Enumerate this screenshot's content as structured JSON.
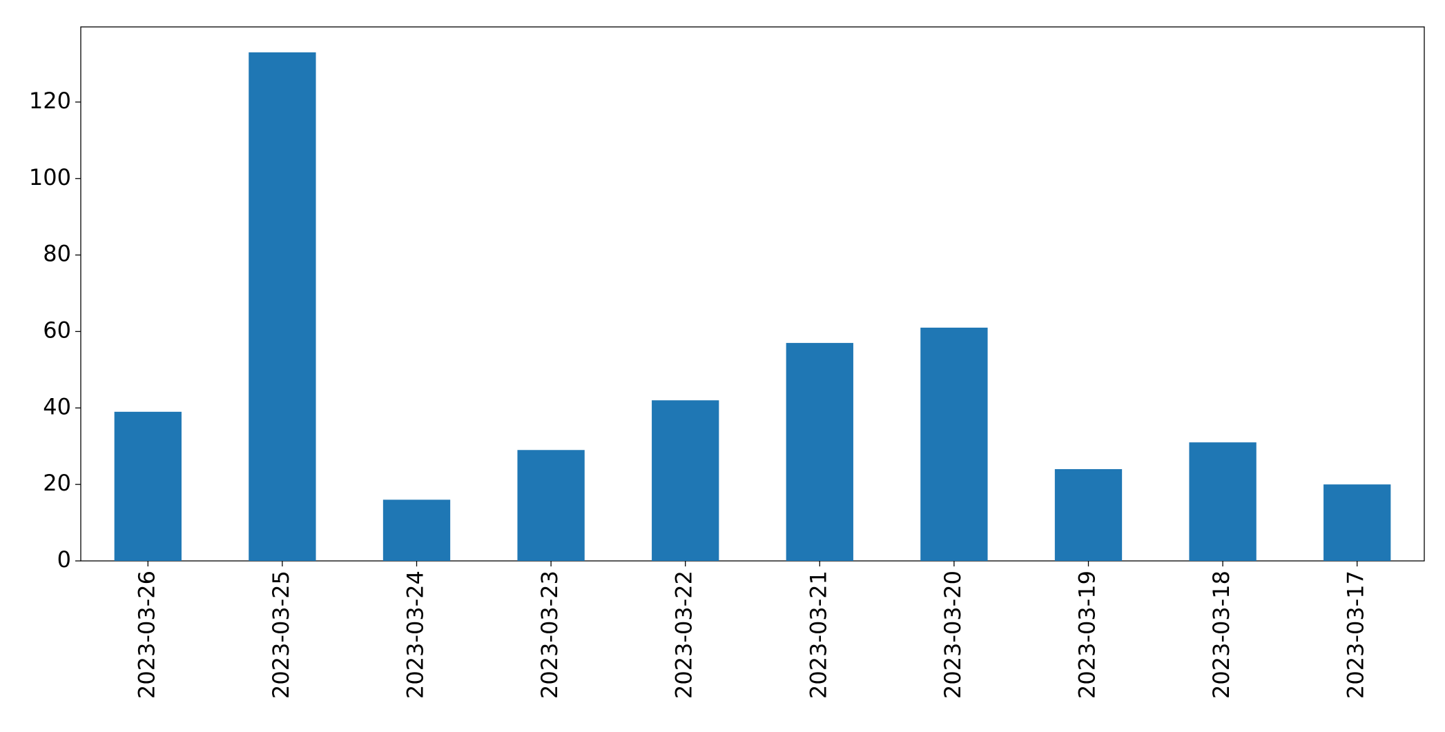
{
  "chart_data": {
    "type": "bar",
    "categories": [
      "2023-03-26",
      "2023-03-25",
      "2023-03-24",
      "2023-03-23",
      "2023-03-22",
      "2023-03-21",
      "2023-03-20",
      "2023-03-19",
      "2023-03-18",
      "2023-03-17"
    ],
    "values": [
      39,
      133,
      16,
      29,
      42,
      57,
      61,
      24,
      31,
      20
    ],
    "color": "#1f77b4",
    "ylim": [
      0,
      139.65
    ],
    "yticks": [
      0,
      20,
      40,
      60,
      80,
      100,
      120
    ],
    "grid": false
  }
}
